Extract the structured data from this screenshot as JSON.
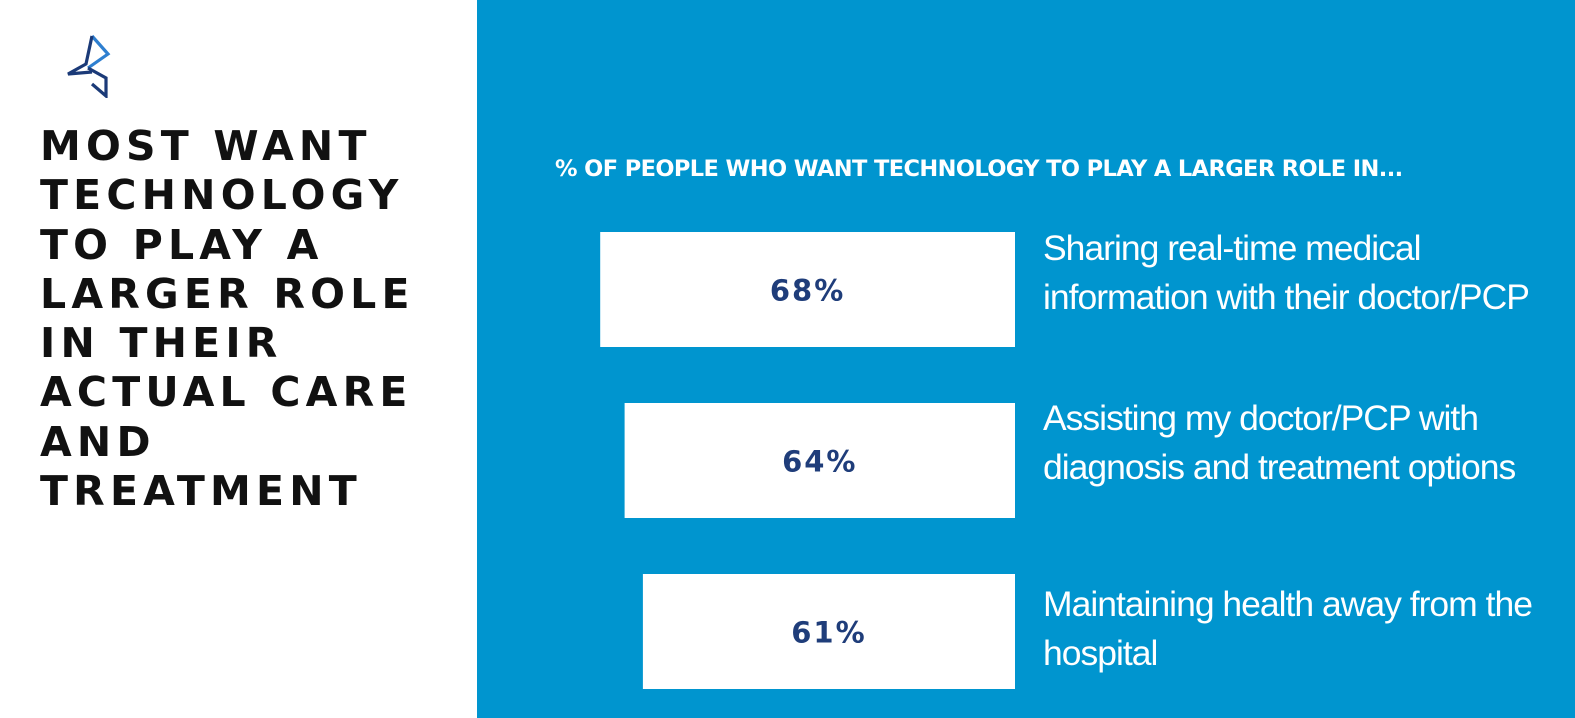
{
  "headline": "MOST WANT TECHNOLOGY TO PLAY A LARGER ROLE IN THEIR ACTUAL CARE AND TREATMENT",
  "colors": {
    "panel_background": "#0095cf",
    "bar_fill": "#ffffff",
    "value_text": "#1f3d7a",
    "logo_dark": "#1b3a78",
    "logo_light": "#2e7fd0"
  },
  "chart_data": {
    "type": "bar",
    "orientation": "horizontal",
    "title": "% OF PEOPLE WHO WANT TECHNOLOGY TO PLAY A LARGER ROLE IN...",
    "categories": [
      "Sharing real-time medical information with their doctor/PCP",
      "Assisting my doctor/PCP with diagnosis and treatment options",
      "Maintaining health away from the hospital"
    ],
    "values": [
      68,
      64,
      61
    ],
    "value_labels": [
      "68%",
      "64%",
      "61%"
    ],
    "unit": "%",
    "grid": false,
    "legend": "none"
  }
}
